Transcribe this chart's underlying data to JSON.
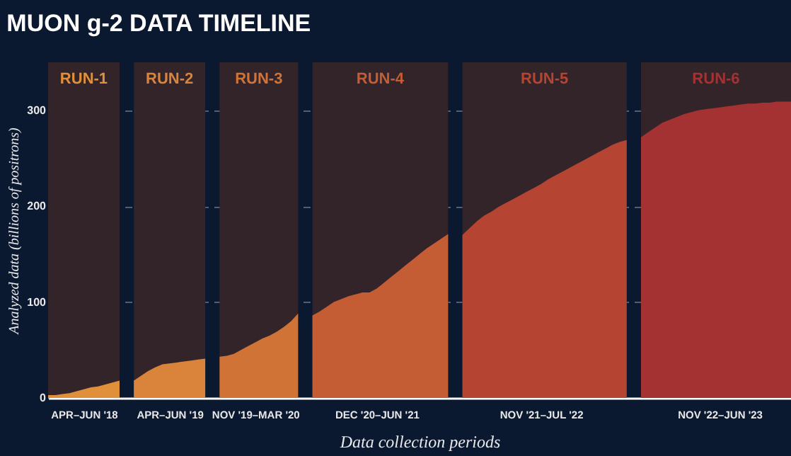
{
  "chart_data": {
    "type": "area",
    "title": "MUON g-2 DATA TIMELINE",
    "xlabel": "Data collection periods",
    "ylabel": "Analyzed data (billions of positrons)",
    "ylim": [
      0,
      350
    ],
    "yticks": [
      0,
      100,
      200,
      300
    ],
    "grid": "y",
    "categories": [
      null,
      null,
      null,
      null,
      null,
      "APR–JUN '18",
      null,
      null,
      null,
      null,
      null,
      null,
      null,
      null,
      null,
      null,
      null,
      "APR–JUN '19",
      null,
      null,
      null,
      null,
      null,
      null,
      null,
      null,
      null,
      null,
      null,
      "NOV '19–MAR '20",
      null,
      null,
      null,
      null,
      null,
      null,
      null,
      null,
      null,
      null,
      null,
      null,
      null,
      null,
      null,
      null,
      "DEC '20–JUN '21",
      null,
      null,
      null,
      null,
      null,
      null,
      null,
      null,
      null,
      null,
      null,
      null,
      null,
      null,
      null,
      null,
      null,
      null,
      null,
      null,
      null,
      null,
      "NOV '21–JUL '22",
      null,
      null,
      null,
      null,
      null,
      null,
      null,
      null,
      null,
      null,
      null,
      null,
      null,
      null,
      null,
      null,
      null,
      null,
      null,
      null,
      null,
      null,
      null,
      null,
      "NOV '22–JUN '23",
      null,
      null,
      null,
      null,
      null,
      null,
      null,
      null,
      null,
      null
    ],
    "series": [
      {
        "name": "RUN-1",
        "color": "#e0903a",
        "values": [
          3,
          3,
          4,
          5,
          7,
          9,
          11,
          12,
          14,
          16,
          18,
          null,
          null,
          null,
          null,
          null,
          null,
          null,
          null,
          null,
          null,
          null,
          null,
          null,
          null,
          null,
          null,
          null,
          null,
          null,
          null,
          null,
          null,
          null,
          null,
          null,
          null,
          null,
          null,
          null,
          null,
          null,
          null,
          null,
          null,
          null,
          null,
          null,
          null,
          null,
          null,
          null,
          null,
          null,
          null,
          null,
          null,
          null,
          null,
          null,
          null,
          null,
          null,
          null,
          null,
          null,
          null,
          null,
          null,
          null,
          null,
          null,
          null,
          null,
          null,
          null,
          null,
          null,
          null,
          null,
          null,
          null,
          null,
          null,
          null,
          null,
          null,
          null,
          null,
          null,
          null,
          null,
          null,
          null,
          null,
          null,
          null,
          null,
          null,
          null,
          null,
          null,
          null,
          null,
          null
        ]
      },
      {
        "name": "RUN-2",
        "color": "#d9843a",
        "values": [
          null,
          null,
          null,
          null,
          null,
          null,
          null,
          null,
          null,
          null,
          null,
          null,
          18,
          23,
          28,
          32,
          35,
          36,
          37,
          38,
          39,
          40,
          41,
          null,
          null,
          null,
          null,
          null,
          null,
          null,
          null,
          null,
          null,
          null,
          null,
          null,
          null,
          null,
          null,
          null,
          null,
          null,
          null,
          null,
          null,
          null,
          null,
          null,
          null,
          null,
          null,
          null,
          null,
          null,
          null,
          null,
          null,
          null,
          null,
          null,
          null,
          null,
          null,
          null,
          null,
          null,
          null,
          null,
          null,
          null,
          null,
          null,
          null,
          null,
          null,
          null,
          null,
          null,
          null,
          null,
          null,
          null,
          null,
          null,
          null,
          null,
          null,
          null,
          null,
          null,
          null,
          null,
          null,
          null,
          null,
          null,
          null,
          null,
          null,
          null,
          null,
          null,
          null,
          null,
          null
        ]
      },
      {
        "name": "RUN-3",
        "color": "#cf7337",
        "values": [
          null,
          null,
          null,
          null,
          null,
          null,
          null,
          null,
          null,
          null,
          null,
          null,
          null,
          null,
          null,
          null,
          null,
          null,
          null,
          null,
          null,
          null,
          null,
          null,
          43,
          44,
          46,
          50,
          54,
          58,
          62,
          65,
          69,
          74,
          80,
          88,
          null,
          null,
          null,
          null,
          null,
          null,
          null,
          null,
          null,
          null,
          null,
          null,
          null,
          null,
          null,
          null,
          null,
          null,
          null,
          null,
          null,
          null,
          null,
          null,
          null,
          null,
          null,
          null,
          null,
          null,
          null,
          null,
          null,
          null,
          null,
          null,
          null,
          null,
          null,
          null,
          null,
          null,
          null,
          null,
          null,
          null,
          null,
          null,
          null,
          null,
          null,
          null,
          null,
          null,
          null,
          null,
          null,
          null,
          null,
          null,
          null,
          null,
          null,
          null,
          null,
          null,
          null,
          null,
          null
        ]
      },
      {
        "name": "RUN-4",
        "color": "#c45c34",
        "values": [
          null,
          null,
          null,
          null,
          null,
          null,
          null,
          null,
          null,
          null,
          null,
          null,
          null,
          null,
          null,
          null,
          null,
          null,
          null,
          null,
          null,
          null,
          null,
          null,
          null,
          null,
          null,
          null,
          null,
          null,
          null,
          null,
          null,
          null,
          null,
          null,
          null,
          86,
          90,
          95,
          100,
          103,
          106,
          108,
          110,
          110,
          114,
          120,
          126,
          132,
          138,
          144,
          150,
          156,
          161,
          166,
          171,
          null,
          null,
          null,
          null,
          null,
          null,
          null,
          null,
          null,
          null,
          null,
          null,
          null,
          null,
          null,
          null,
          null,
          null,
          null,
          null,
          null,
          null,
          null,
          null,
          null,
          null,
          null,
          null,
          null,
          null,
          null,
          null,
          null,
          null,
          null,
          null,
          null,
          null,
          null,
          null,
          null,
          null,
          null,
          null,
          null,
          null,
          null,
          null
        ]
      },
      {
        "name": "RUN-5",
        "color": "#b54532",
        "values": [
          null,
          null,
          null,
          null,
          null,
          null,
          null,
          null,
          null,
          null,
          null,
          null,
          null,
          null,
          null,
          null,
          null,
          null,
          null,
          null,
          null,
          null,
          null,
          null,
          null,
          null,
          null,
          null,
          null,
          null,
          null,
          null,
          null,
          null,
          null,
          null,
          null,
          null,
          null,
          null,
          null,
          null,
          null,
          null,
          null,
          null,
          null,
          null,
          null,
          null,
          null,
          null,
          null,
          null,
          null,
          null,
          null,
          null,
          170,
          177,
          184,
          190,
          194,
          199,
          203,
          207,
          211,
          215,
          219,
          223,
          228,
          232,
          236,
          240,
          244,
          248,
          252,
          256,
          260,
          264,
          267,
          269,
          null,
          null,
          null,
          null,
          null,
          null,
          null,
          null,
          null,
          null,
          null,
          null,
          null,
          null,
          null,
          null,
          null,
          null,
          null,
          null,
          null,
          null,
          null
        ]
      },
      {
        "name": "RUN-6",
        "color": "#a53233",
        "values": [
          null,
          null,
          null,
          null,
          null,
          null,
          null,
          null,
          null,
          null,
          null,
          null,
          null,
          null,
          null,
          null,
          null,
          null,
          null,
          null,
          null,
          null,
          null,
          null,
          null,
          null,
          null,
          null,
          null,
          null,
          null,
          null,
          null,
          null,
          null,
          null,
          null,
          null,
          null,
          null,
          null,
          null,
          null,
          null,
          null,
          null,
          null,
          null,
          null,
          null,
          null,
          null,
          null,
          null,
          null,
          null,
          null,
          null,
          null,
          null,
          null,
          null,
          null,
          null,
          null,
          null,
          null,
          null,
          null,
          null,
          null,
          null,
          null,
          null,
          null,
          null,
          null,
          null,
          null,
          null,
          null,
          null,
          null,
          272,
          277,
          282,
          287,
          290,
          293,
          296,
          298,
          300,
          301,
          302,
          303,
          304,
          305,
          306,
          307,
          307,
          308,
          308,
          309,
          309,
          309
        ]
      }
    ]
  }
}
